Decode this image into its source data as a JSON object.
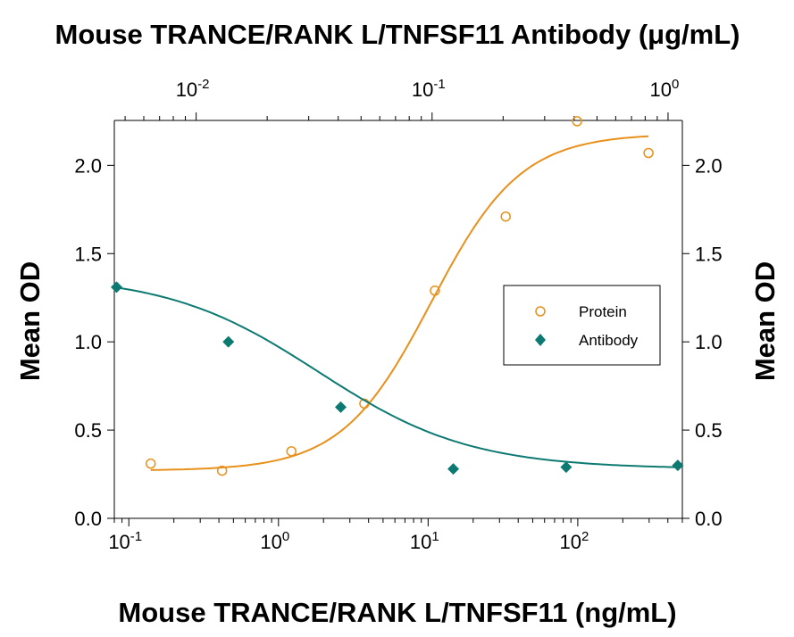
{
  "chart_data": {
    "type": "scatter",
    "title": "Mouse TRANCE/RANK L/TNFSF11 Antibody (μg/mL)",
    "xlabel": "Mouse TRANCE/RANK L/TNFSF11 (ng/mL)",
    "ylabel": "Mean OD",
    "ylabel_right": "Mean OD",
    "x_scale": "log",
    "xlim": [
      0.08,
      500
    ],
    "ylim": [
      0,
      2.25
    ],
    "x_ticks": [
      {
        "base": "10",
        "exp": "-1",
        "value": 0.1
      },
      {
        "base": "10",
        "exp": "0",
        "value": 1
      },
      {
        "base": "10",
        "exp": "1",
        "value": 10
      },
      {
        "base": "10",
        "exp": "2",
        "value": 100
      }
    ],
    "y_ticks": [
      "0.0",
      "0.5",
      "1.0",
      "1.5",
      "2.0"
    ],
    "y_tick_values": [
      0,
      0.5,
      1.0,
      1.5,
      2.0
    ],
    "top_axis": {
      "scale": "log",
      "xlim": [
        0.0045,
        1.15
      ],
      "ticks": [
        {
          "base": "10",
          "exp": "-2",
          "value": 0.01
        },
        {
          "base": "10",
          "exp": "-1",
          "value": 0.1
        },
        {
          "base": "10",
          "exp": "0",
          "value": 1
        }
      ]
    },
    "legend": {
      "placement": "center-right"
    },
    "grid": false,
    "series": [
      {
        "name": "Protein",
        "marker": "open-circle",
        "color": "#e8901a",
        "axis": "bottom",
        "x": [
          0.14,
          0.42,
          1.22,
          3.75,
          11.1,
          33,
          99,
          297
        ],
        "y": [
          0.31,
          0.27,
          0.38,
          0.65,
          1.29,
          1.71,
          2.25,
          2.07
        ],
        "fit": {
          "bottom": 0.27,
          "top": 2.18,
          "ec50": 10.5,
          "hill": 1.45
        }
      },
      {
        "name": "Antibody",
        "marker": "filled-diamond",
        "color": "#0d7a72",
        "axis": "top",
        "x": [
          0.0046,
          0.0137,
          0.041,
          0.123,
          0.37,
          1.1
        ],
        "y": [
          1.31,
          1.0,
          0.63,
          0.28,
          0.29,
          0.3
        ],
        "fit": {
          "bottom": 0.28,
          "top": 1.38,
          "ec50": 0.033,
          "hill": 1.35
        }
      }
    ]
  }
}
